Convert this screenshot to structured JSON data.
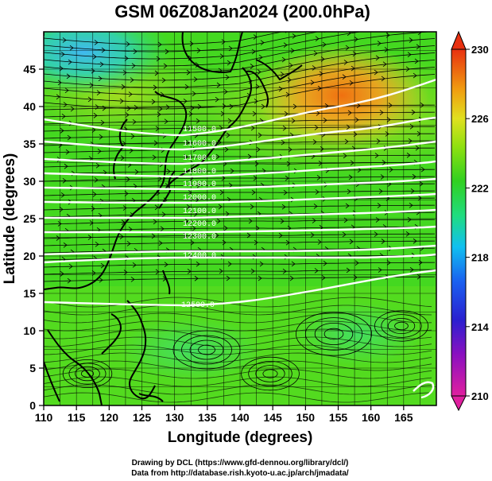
{
  "title": "GSM 06Z08Jan2024 (200.0hPa)",
  "xlabel": "Longitude (degrees)",
  "ylabel": "Latitude  (degrees)",
  "credits": [
    "Drawing by DCL (https://www.gfd-dennou.org/library/dcl/)",
    "Data from http://database.rish.kyoto-u.ac.jp/arch/jmadata/"
  ],
  "map": {
    "lon_range": [
      110,
      170
    ],
    "lat_range": [
      0,
      50
    ],
    "x_ticks": [
      "110",
      "115",
      "120",
      "125",
      "130",
      "135",
      "140",
      "145",
      "150",
      "155",
      "160",
      "165"
    ],
    "y_ticks": [
      "0",
      "5",
      "10",
      "15",
      "20",
      "25",
      "30",
      "35",
      "40",
      "45"
    ],
    "colorbar": {
      "min": 210,
      "max": 230,
      "tick_labels": [
        "230",
        "226",
        "222",
        "218",
        "214",
        "210"
      ],
      "colors": [
        "#e0209f",
        "#3a10b0",
        "#1a4cf0",
        "#10c0f0",
        "#20dc70",
        "#70e010",
        "#d8e020",
        "#f0a010",
        "#e83010"
      ]
    },
    "contour_labels": [
      "11500.0",
      "11600.0",
      "11700.0",
      "11800.0",
      "11900.0",
      "12000.0",
      "12100.0",
      "12200.0",
      "12300.0",
      "12400.0",
      "12500.0"
    ],
    "chart_data": {
      "type": "heatmap",
      "title": "GSM 06Z08Jan2024 (200.0hPa)",
      "xlabel": "Longitude (degrees)",
      "ylabel": "Latitude  (degrees)",
      "xlim": [
        110,
        170
      ],
      "ylim": [
        0,
        50
      ],
      "colorbar_range": [
        210,
        230
      ],
      "warm_core": {
        "lon": 152,
        "lat": 43,
        "value": 227
      },
      "cold_core": {
        "lon": 113,
        "lat": 47,
        "value": 217
      },
      "contours": [
        {
          "value": 11500.0,
          "label_lon": 131,
          "label_lat": 37
        },
        {
          "value": 11600.0,
          "label_lon": 131,
          "label_lat": 35
        },
        {
          "value": 11700.0,
          "label_lon": 131,
          "label_lat": 33
        },
        {
          "value": 11800.0,
          "label_lon": 131,
          "label_lat": 31.5
        },
        {
          "value": 11900.0,
          "label_lon": 131,
          "label_lat": 30
        },
        {
          "value": 12000.0,
          "label_lon": 131,
          "label_lat": 28.5
        },
        {
          "value": 12100.0,
          "label_lon": 131,
          "label_lat": 27
        },
        {
          "value": 12200.0,
          "label_lon": 131,
          "label_lat": 25.5
        },
        {
          "value": 12300.0,
          "label_lon": 131,
          "label_lat": 24
        },
        {
          "value": 12400.0,
          "label_lon": 131,
          "label_lat": 21.5
        },
        {
          "value": 12500.0,
          "label_lon": 131,
          "label_lat": 15
        }
      ]
    }
  }
}
